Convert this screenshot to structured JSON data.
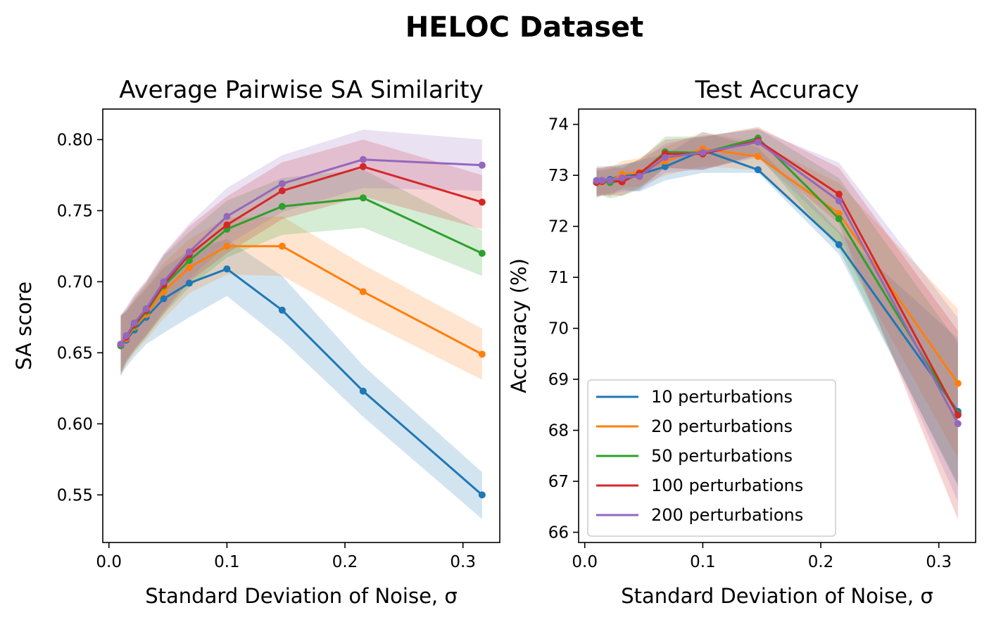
{
  "figure": {
    "suptitle": "HELOC Dataset"
  },
  "chart_data": [
    {
      "type": "line",
      "title": "Average Pairwise SA Similarity",
      "xlabel": "Standard Deviation of Noise, σ",
      "ylabel": "SA score",
      "xlim": [
        -0.0052,
        0.3312
      ],
      "ylim": [
        0.5165,
        0.8215
      ],
      "xticks": [
        0.0,
        0.1,
        0.2,
        0.3
      ],
      "xtick_labels": [
        "0.0",
        "0.1",
        "0.2",
        "0.3"
      ],
      "yticks": [
        0.55,
        0.6,
        0.65,
        0.7,
        0.75,
        0.8
      ],
      "ytick_labels": [
        "0.55",
        "0.60",
        "0.65",
        "0.70",
        "0.75",
        "0.80"
      ],
      "x": [
        0.01,
        0.0147,
        0.0215,
        0.0316,
        0.0464,
        0.0681,
        0.1,
        0.1468,
        0.2154,
        0.3162
      ],
      "series": [
        {
          "name": "10 perturbations",
          "color": "#1f77b4",
          "values": [
            0.655,
            0.659,
            0.666,
            0.675,
            0.688,
            0.699,
            0.709,
            0.68,
            0.623,
            0.55
          ],
          "lower": [
            0.634,
            0.64,
            0.647,
            0.656,
            0.664,
            0.675,
            0.69,
            0.659,
            0.605,
            0.533
          ],
          "upper": [
            0.676,
            0.679,
            0.686,
            0.695,
            0.71,
            0.722,
            0.73,
            0.704,
            0.641,
            0.566
          ]
        },
        {
          "name": "20 perturbations",
          "color": "#ff7f0e",
          "values": [
            0.655,
            0.66,
            0.668,
            0.677,
            0.693,
            0.71,
            0.725,
            0.725,
            0.693,
            0.649
          ],
          "lower": [
            0.634,
            0.642,
            0.65,
            0.659,
            0.674,
            0.692,
            0.705,
            0.704,
            0.673,
            0.631
          ],
          "upper": [
            0.676,
            0.679,
            0.687,
            0.697,
            0.713,
            0.73,
            0.745,
            0.746,
            0.712,
            0.667
          ]
        },
        {
          "name": "50 perturbations",
          "color": "#2ca02c",
          "values": [
            0.655,
            0.661,
            0.669,
            0.679,
            0.697,
            0.715,
            0.737,
            0.753,
            0.759,
            0.72
          ],
          "lower": [
            0.634,
            0.643,
            0.651,
            0.661,
            0.677,
            0.696,
            0.717,
            0.733,
            0.738,
            0.704
          ],
          "upper": [
            0.676,
            0.68,
            0.688,
            0.699,
            0.718,
            0.735,
            0.757,
            0.773,
            0.779,
            0.736
          ]
        },
        {
          "name": "100 perturbations",
          "color": "#d62728",
          "values": [
            0.656,
            0.661,
            0.67,
            0.68,
            0.698,
            0.719,
            0.74,
            0.764,
            0.781,
            0.756
          ],
          "lower": [
            0.636,
            0.644,
            0.652,
            0.662,
            0.678,
            0.7,
            0.72,
            0.744,
            0.76,
            0.737
          ],
          "upper": [
            0.676,
            0.681,
            0.69,
            0.7,
            0.719,
            0.739,
            0.76,
            0.784,
            0.8,
            0.775
          ]
        },
        {
          "name": "200 perturbations",
          "color": "#9467bd",
          "values": [
            0.656,
            0.662,
            0.671,
            0.681,
            0.7,
            0.721,
            0.746,
            0.769,
            0.786,
            0.782
          ],
          "lower": [
            0.636,
            0.645,
            0.653,
            0.663,
            0.68,
            0.702,
            0.726,
            0.749,
            0.766,
            0.764
          ],
          "upper": [
            0.677,
            0.682,
            0.691,
            0.701,
            0.72,
            0.741,
            0.766,
            0.789,
            0.807,
            0.8
          ]
        }
      ],
      "legend": null
    },
    {
      "type": "line",
      "title": "Test Accuracy",
      "xlabel": "Standard Deviation of Noise, σ",
      "ylabel": "Accuracy (%)",
      "xlim": [
        -0.0052,
        0.3312
      ],
      "ylim": [
        65.8,
        74.3
      ],
      "xticks": [
        0.0,
        0.1,
        0.2,
        0.3
      ],
      "xtick_labels": [
        "0.0",
        "0.1",
        "0.2",
        "0.3"
      ],
      "yticks": [
        66,
        67,
        68,
        69,
        70,
        71,
        72,
        73,
        74
      ],
      "ytick_labels": [
        "66",
        "67",
        "68",
        "69",
        "70",
        "71",
        "72",
        "73",
        "74"
      ],
      "x": [
        0.01,
        0.0147,
        0.0215,
        0.0316,
        0.0464,
        0.0681,
        0.1,
        0.1468,
        0.2154,
        0.3162
      ],
      "series": [
        {
          "name": "10 perturbations",
          "color": "#1f77b4",
          "values": [
            72.88,
            72.9,
            72.92,
            73.0,
            73.02,
            73.17,
            73.49,
            73.11,
            71.64,
            68.37
          ],
          "lower": [
            72.55,
            72.62,
            72.65,
            72.72,
            72.68,
            72.9,
            73.05,
            73.05,
            71.45,
            66.95
          ],
          "upper": [
            73.1,
            73.1,
            73.12,
            73.2,
            73.3,
            73.4,
            73.85,
            73.55,
            71.9,
            69.8
          ]
        },
        {
          "name": "20 perturbations",
          "color": "#ff7f0e",
          "values": [
            72.86,
            72.87,
            72.88,
            73.02,
            73.06,
            73.28,
            73.52,
            73.37,
            72.25,
            68.92
          ],
          "lower": [
            72.6,
            72.62,
            72.58,
            72.75,
            72.78,
            73.0,
            73.18,
            73.1,
            71.65,
            67.45
          ],
          "upper": [
            73.12,
            73.12,
            73.15,
            73.28,
            73.34,
            73.56,
            73.85,
            73.64,
            72.85,
            70.38
          ]
        },
        {
          "name": "50 perturbations",
          "color": "#2ca02c",
          "values": [
            72.88,
            72.88,
            72.86,
            72.9,
            73.01,
            73.46,
            73.44,
            73.73,
            72.15,
            68.32
          ],
          "lower": [
            72.6,
            72.6,
            72.55,
            72.6,
            72.72,
            73.15,
            73.12,
            73.4,
            71.55,
            66.9
          ],
          "upper": [
            73.15,
            73.15,
            73.18,
            73.2,
            73.3,
            73.76,
            73.76,
            73.92,
            72.95,
            69.72
          ]
        },
        {
          "name": "100 perturbations",
          "color": "#d62728",
          "values": [
            72.86,
            72.88,
            72.9,
            72.87,
            73.04,
            73.42,
            73.42,
            73.68,
            72.63,
            68.3
          ],
          "lower": [
            72.58,
            72.6,
            72.62,
            72.6,
            72.76,
            73.15,
            73.1,
            73.4,
            72.05,
            66.25
          ],
          "upper": [
            73.14,
            73.15,
            73.18,
            73.14,
            73.32,
            73.7,
            73.75,
            73.95,
            73.15,
            69.95
          ]
        },
        {
          "name": "200 perturbations",
          "color": "#9467bd",
          "values": [
            72.9,
            72.9,
            72.9,
            72.95,
            72.98,
            73.35,
            73.45,
            73.65,
            72.5,
            68.13
          ],
          "lower": [
            72.62,
            72.62,
            72.62,
            72.68,
            72.7,
            73.05,
            73.12,
            73.35,
            71.85,
            66.6
          ],
          "upper": [
            73.18,
            73.18,
            73.18,
            73.22,
            73.26,
            73.62,
            73.78,
            73.9,
            73.25,
            70.2
          ]
        }
      ],
      "legend": {
        "location": "lower-left"
      }
    }
  ]
}
